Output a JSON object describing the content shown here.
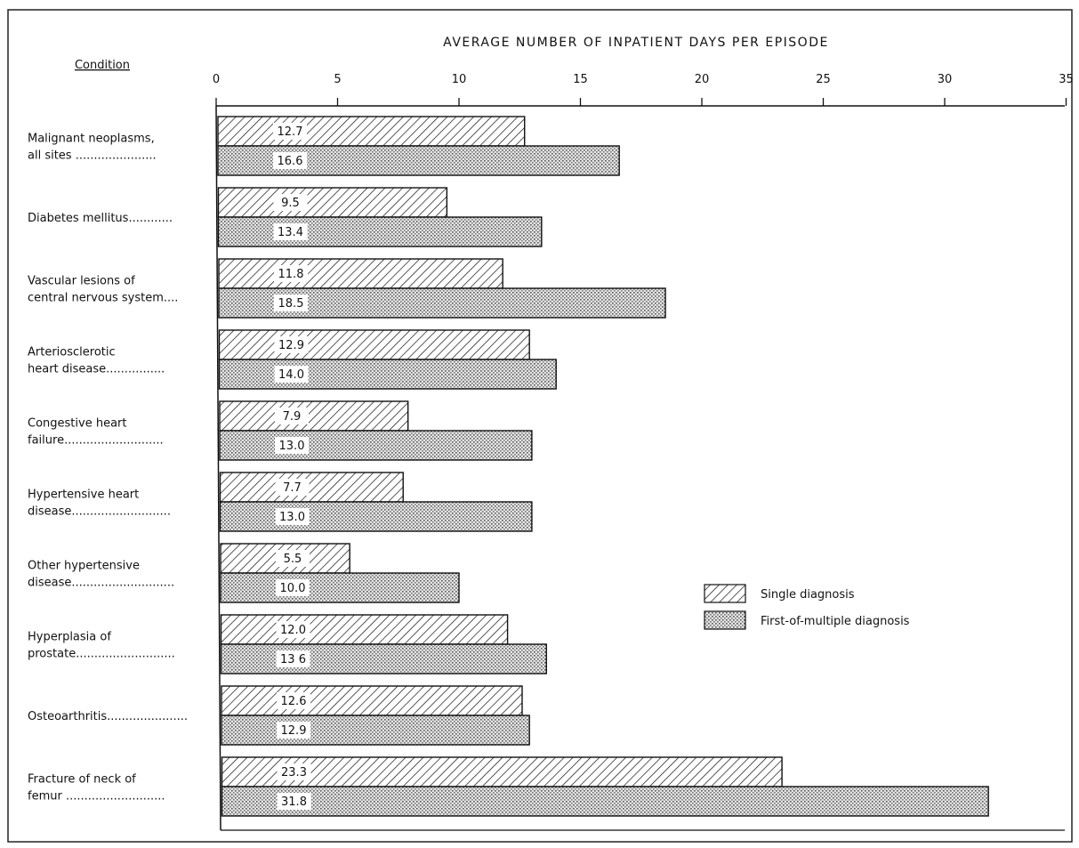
{
  "chart_data": {
    "type": "bar",
    "orientation": "horizontal",
    "title": "AVERAGE NUMBER OF INPATIENT DAYS PER EPISODE",
    "category_header": "Condition",
    "categories": [
      [
        "Malignant neoplasms,",
        "all sites ......................"
      ],
      [
        "Diabetes mellitus............"
      ],
      [
        "Vascular lesions of",
        "central nervous system...."
      ],
      [
        "Arteriosclerotic",
        "heart disease................"
      ],
      [
        "Congestive heart",
        "failure..........................."
      ],
      [
        "Hypertensive heart",
        "disease..........................."
      ],
      [
        "Other hypertensive",
        "disease............................"
      ],
      [
        "Hyperplasia of",
        "prostate..........................."
      ],
      [
        "Osteoarthritis......................"
      ],
      [
        "Fracture of neck of",
        "femur ..........................."
      ]
    ],
    "series": [
      {
        "name": "Single diagnosis",
        "pattern": "hatch",
        "values": [
          12.7,
          9.5,
          11.8,
          12.9,
          7.9,
          7.7,
          5.5,
          12.0,
          12.6,
          23.3
        ],
        "labels": [
          "12.7",
          "9.5",
          "11.8",
          "12.9",
          "7.9",
          "7.7",
          "5.5",
          "12.0",
          "12.6",
          "23.3"
        ]
      },
      {
        "name": "First-of-multiple diagnosis",
        "pattern": "stipple",
        "values": [
          16.6,
          13.4,
          18.5,
          14.0,
          13.0,
          13.0,
          10.0,
          13.6,
          12.9,
          31.8
        ],
        "labels": [
          "16.6",
          "13.4",
          "18.5",
          "14.0",
          "13.0",
          "13.0",
          "10.0",
          "13 6",
          "12.9",
          "31.8"
        ]
      }
    ],
    "xlim": [
      0,
      35
    ],
    "ticks": [
      0,
      5,
      10,
      15,
      20,
      25,
      30,
      35
    ],
    "tick_labels": [
      "0",
      "5",
      "10",
      "15",
      "20",
      "25",
      "30",
      "35"
    ],
    "axis_position": "top",
    "grid": false,
    "legend": "right-middle",
    "colors": {
      "ink": "#111111",
      "stipple": "#b8b8b8",
      "background": "#ffffff"
    }
  }
}
